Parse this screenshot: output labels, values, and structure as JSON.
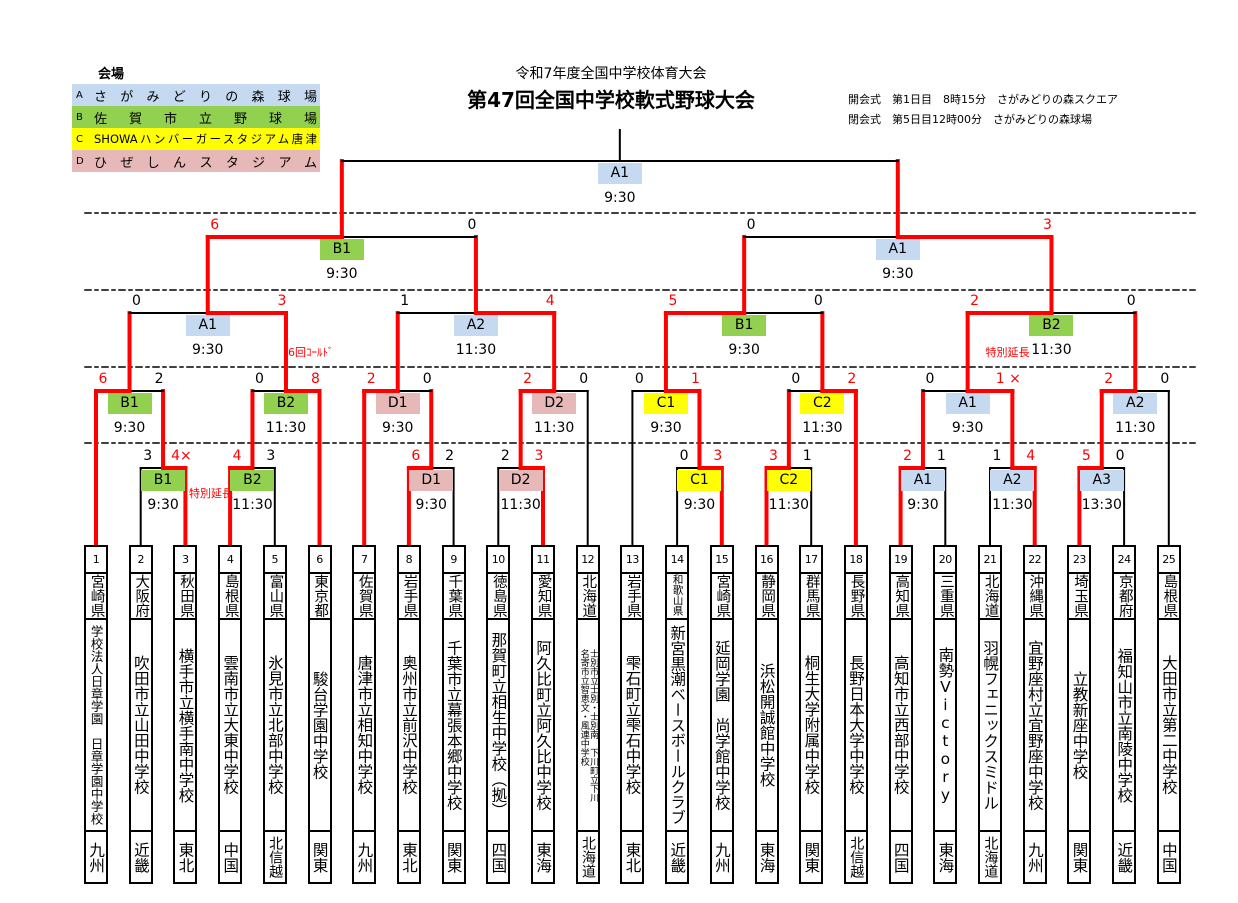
{
  "legend": {
    "title": "会場",
    "venues": [
      {
        "key": "A",
        "name": "さがみどりの森球場",
        "color": "#c5d9f1"
      },
      {
        "key": "B",
        "name": "佐賀市立野球場",
        "color": "#92d050"
      },
      {
        "key": "C",
        "name": "SHOWAハンバーガースタジアム唐津",
        "color": "#ffff00"
      },
      {
        "key": "D",
        "name": "ひぜしんスタジアム",
        "color": "#e6b8b7"
      }
    ]
  },
  "header": {
    "subtitle": "令和7年度全国中学校体育大会",
    "title": "第47回全国中学校軟式野球大会",
    "ceremonies": [
      "開会式　第1日目　8時15分　さがみどりの森スクエア",
      "閉会式　第5日目12時00分　さがみどりの森球場"
    ]
  },
  "colors": {
    "winner_line": "#ff0000",
    "line": "#000000",
    "venue_A": "#c5d9f1",
    "venue_B": "#92d050",
    "venue_C": "#ffff00",
    "venue_D": "#e6b8b7"
  },
  "teams": [
    {
      "no": "1",
      "pref": "宮崎県",
      "school": "学校法人日章学園　日章学園中学校",
      "region": "九州"
    },
    {
      "no": "2",
      "pref": "大阪府",
      "school": "吹田市立山田中学校",
      "region": "近畿"
    },
    {
      "no": "3",
      "pref": "秋田県",
      "school": "横手市立横手南中学校",
      "region": "東北"
    },
    {
      "no": "4",
      "pref": "島根県",
      "school": "雲南市立大東中学校",
      "region": "中国"
    },
    {
      "no": "5",
      "pref": "富山県",
      "school": "氷見市立北部中学校",
      "region": "北信越"
    },
    {
      "no": "6",
      "pref": "東京都",
      "school": "駿台学園中学校",
      "region": "関東"
    },
    {
      "no": "7",
      "pref": "佐賀県",
      "school": "唐津市立相知中学校",
      "region": "九州"
    },
    {
      "no": "8",
      "pref": "岩手県",
      "school": "奥州市立前沢中学校",
      "region": "東北"
    },
    {
      "no": "9",
      "pref": "千葉県",
      "school": "千葉市立幕張本郷中学校",
      "region": "関東"
    },
    {
      "no": "10",
      "pref": "徳島県",
      "school": "那賀町立相生中学校（拠）",
      "region": "四国"
    },
    {
      "no": "11",
      "pref": "愛知県",
      "school": "阿久比町立阿久比中学校",
      "region": "東海"
    },
    {
      "no": "12",
      "pref": "北海道",
      "school": "士別市立士別・士別南　下川町立下川\n名寄市立智恵文・風連中学校",
      "region": "北海道"
    },
    {
      "no": "13",
      "pref": "岩手県",
      "school": "雫石町立雫石中学校",
      "region": "東北"
    },
    {
      "no": "14",
      "pref": "和歌山県",
      "school": "新宮黒潮ベースボールクラブ",
      "region": "近畿"
    },
    {
      "no": "15",
      "pref": "宮崎県",
      "school": "延岡学園　尚学館中学校",
      "region": "九州"
    },
    {
      "no": "16",
      "pref": "静岡県",
      "school": "浜松開誠館中学校",
      "region": "東海"
    },
    {
      "no": "17",
      "pref": "群馬県",
      "school": "桐生大学附属中学校",
      "region": "関東"
    },
    {
      "no": "18",
      "pref": "長野県",
      "school": "長野日本大学中学校",
      "region": "北信越"
    },
    {
      "no": "19",
      "pref": "高知県",
      "school": "高知市立西部中学校",
      "region": "四国"
    },
    {
      "no": "20",
      "pref": "三重県",
      "school": "南勢Victory",
      "region": "東海"
    },
    {
      "no": "21",
      "pref": "北海道",
      "school": "羽幌フェニックスミドル",
      "region": "北海道"
    },
    {
      "no": "22",
      "pref": "沖縄県",
      "school": "宜野座村立宜野座中学校",
      "region": "九州"
    },
    {
      "no": "23",
      "pref": "埼玉県",
      "school": "立教新座中学校",
      "region": "関東"
    },
    {
      "no": "24",
      "pref": "京都府",
      "school": "福知山市立南陵中学校",
      "region": "近畿"
    },
    {
      "no": "25",
      "pref": "島根県",
      "school": "大田市立第二中学校",
      "region": "中国"
    }
  ],
  "games": [
    {
      "id": "g1",
      "round": 1,
      "left": "t2",
      "right": "t3",
      "venue": "B1",
      "time": "9:30",
      "scores": [
        "3",
        "4×"
      ],
      "winner": "right",
      "note": "特別延長"
    },
    {
      "id": "g2",
      "round": 1,
      "left": "t4",
      "right": "t5",
      "venue": "B2",
      "time": "11:30",
      "scores": [
        "4",
        "3"
      ],
      "winner": "left"
    },
    {
      "id": "g3",
      "round": 1,
      "left": "t8",
      "right": "t9",
      "venue": "D1",
      "time": "9:30",
      "scores": [
        "6",
        "2"
      ],
      "winner": "left"
    },
    {
      "id": "g4",
      "round": 1,
      "left": "t10",
      "right": "t11",
      "venue": "D2",
      "time": "11:30",
      "scores": [
        "2",
        "3"
      ],
      "winner": "right"
    },
    {
      "id": "g5",
      "round": 1,
      "left": "t14",
      "right": "t15",
      "venue": "C1",
      "time": "9:30",
      "scores": [
        "0",
        "3"
      ],
      "winner": "right"
    },
    {
      "id": "g6",
      "round": 1,
      "left": "t16",
      "right": "t17",
      "venue": "C2",
      "time": "11:30",
      "scores": [
        "3",
        "1"
      ],
      "winner": "left"
    },
    {
      "id": "g7",
      "round": 1,
      "left": "t19",
      "right": "t20",
      "venue": "A1",
      "time": "9:30",
      "scores": [
        "2",
        "1"
      ],
      "winner": "left"
    },
    {
      "id": "g8",
      "round": 1,
      "left": "t21",
      "right": "t22",
      "venue": "A2",
      "time": "11:30",
      "scores": [
        "1",
        "4"
      ],
      "winner": "right"
    },
    {
      "id": "g9",
      "round": 1,
      "left": "t23",
      "right": "t24",
      "venue": "A3",
      "time": "13:30",
      "scores": [
        "5",
        "0"
      ],
      "winner": "left"
    },
    {
      "id": "g10",
      "round": 2,
      "left": "t1",
      "right": "g1",
      "venue": "B1",
      "time": "9:30",
      "scores": [
        "6",
        "2"
      ],
      "winner": "left"
    },
    {
      "id": "g11",
      "round": 2,
      "left": "g2",
      "right": "t6",
      "venue": "B2",
      "time": "11:30",
      "scores": [
        "0",
        "8"
      ],
      "winner": "right"
    },
    {
      "id": "g12",
      "round": 2,
      "left": "t7",
      "right": "g3",
      "venue": "D1",
      "time": "9:30",
      "scores": [
        "2",
        "0"
      ],
      "winner": "left"
    },
    {
      "id": "g13",
      "round": 2,
      "left": "g4",
      "right": "t12",
      "venue": "D2",
      "time": "11:30",
      "scores": [
        "2",
        "0"
      ],
      "winner": "left"
    },
    {
      "id": "g14",
      "round": 2,
      "left": "t13",
      "right": "g5",
      "venue": "C1",
      "time": "9:30",
      "scores": [
        "0",
        "1"
      ],
      "winner": "right"
    },
    {
      "id": "g15",
      "round": 2,
      "left": "g6",
      "right": "t18",
      "venue": "C2",
      "time": "11:30",
      "scores": [
        "0",
        "2"
      ],
      "winner": "right"
    },
    {
      "id": "g16",
      "round": 2,
      "left": "g7",
      "right": "g8",
      "venue": "A1",
      "time": "9:30",
      "scores": [
        "0",
        "1 ×"
      ],
      "winner": "right"
    },
    {
      "id": "g17",
      "round": 2,
      "left": "g9",
      "right": "t25",
      "venue": "A2",
      "time": "11:30",
      "scores": [
        "2",
        "0"
      ],
      "winner": "left"
    },
    {
      "id": "g18",
      "round": 3,
      "left": "g10",
      "right": "g11",
      "venue": "A1",
      "time": "9:30",
      "scores": [
        "0",
        "3"
      ],
      "winner": "right",
      "note": "6回ｺｰﾙﾄﾞ"
    },
    {
      "id": "g19",
      "round": 3,
      "left": "g12",
      "right": "g13",
      "venue": "A2",
      "time": "11:30",
      "scores": [
        "1",
        "4"
      ],
      "winner": "right"
    },
    {
      "id": "g20",
      "round": 3,
      "left": "g14",
      "right": "g15",
      "venue": "B1",
      "time": "9:30",
      "scores": [
        "5",
        "0"
      ],
      "winner": "left"
    },
    {
      "id": "g21",
      "round": 3,
      "left": "g16",
      "right": "g17",
      "venue": "B2",
      "time": "11:30",
      "scores": [
        "2",
        "0"
      ],
      "winner": "left",
      "note": "特別延長"
    },
    {
      "id": "g22",
      "round": 4,
      "left": "g18",
      "right": "g19",
      "venue": "B1",
      "time": "9:30",
      "scores": [
        "6",
        "0"
      ],
      "winner": "left"
    },
    {
      "id": "g23",
      "round": 4,
      "left": "g20",
      "right": "g21",
      "venue": "A1",
      "time": "9:30",
      "scores": [
        "0",
        "3"
      ],
      "winner": "right"
    },
    {
      "id": "g24",
      "round": 5,
      "left": "g22",
      "right": "g23",
      "venue": "A1",
      "time": "9:30",
      "scores": [
        "",
        ""
      ],
      "winner": ""
    }
  ]
}
